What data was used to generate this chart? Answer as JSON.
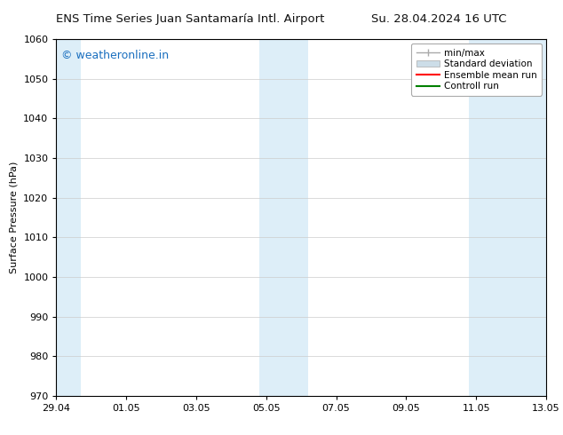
{
  "title_left": "ENS Time Series Juan Santamaría Intl. Airport",
  "title_right": "Su. 28.04.2024 16 UTC",
  "ylabel": "Surface Pressure (hPa)",
  "ylim": [
    970,
    1060
  ],
  "yticks": [
    970,
    980,
    990,
    1000,
    1010,
    1020,
    1030,
    1040,
    1050,
    1060
  ],
  "xtick_labels": [
    "29.04",
    "01.05",
    "03.05",
    "05.05",
    "07.05",
    "09.05",
    "11.05",
    "13.05"
  ],
  "xtick_positions": [
    0,
    2,
    4,
    6,
    8,
    10,
    12,
    14
  ],
  "xlim": [
    0,
    14
  ],
  "shaded_bands": [
    {
      "x_start": -0.1,
      "x_end": 0.7,
      "color": "#ddeef8"
    },
    {
      "x_start": 5.8,
      "x_end": 7.2,
      "color": "#ddeef8"
    },
    {
      "x_start": 11.8,
      "x_end": 14.1,
      "color": "#ddeef8"
    }
  ],
  "watermark_text": "© weatheronline.in",
  "watermark_color": "#1a6fbf",
  "legend_items": [
    {
      "label": "min/max",
      "color": "#aaaaaa",
      "type": "errbar"
    },
    {
      "label": "Standard deviation",
      "color": "#ccdde8",
      "type": "band"
    },
    {
      "label": "Ensemble mean run",
      "color": "#ff0000",
      "type": "line"
    },
    {
      "label": "Controll run",
      "color": "#008000",
      "type": "line"
    }
  ],
  "bg_color": "#ffffff",
  "plot_bg_color": "#ffffff",
  "grid_color": "#cccccc",
  "font_size_title": 9.5,
  "font_size_axis": 8,
  "font_size_tick": 8,
  "font_size_legend": 7.5,
  "font_size_watermark": 9
}
